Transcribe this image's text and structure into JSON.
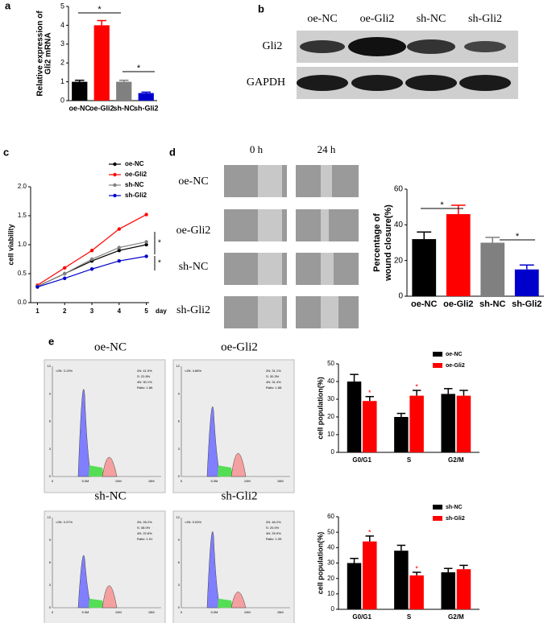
{
  "panel_labels": [
    "a",
    "b",
    "c",
    "d",
    "e"
  ],
  "blot": {
    "columns": [
      "oe-NC",
      "oe-Gli2",
      "sh-NC",
      "sh-Gli2"
    ],
    "rows": [
      "Gli2",
      "GAPDH"
    ]
  },
  "wound": {
    "columns": [
      "0 h",
      "24 h"
    ],
    "rows": [
      "oe-NC",
      "oe-Gli2",
      "sh-NC",
      "sh-Gli2"
    ]
  },
  "flow": {
    "xticks": [
      "0",
      "5.0M",
      "10M",
      "15M"
    ],
    "yticks": [
      "0",
      "3",
      "6",
      "9",
      "12"
    ],
    "panels": [
      {
        "title": "oe-NC",
        "sub": "<2N: 3.13%",
        "stats": [
          "2N: 41.9%",
          "S: 22.8%",
          "4N: 30.1%",
          "Ratio: 1.86"
        ]
      },
      {
        "title": "oe-Gli2",
        "sub": "<2N: 4.88%",
        "stats": [
          "2N: 31.1%",
          "S: 30.3%",
          "4N: 31.4%",
          "Ratio: 1.88"
        ]
      },
      {
        "title": "sh-NC",
        "sub": "<2N: 3.37%",
        "stats": [
          "2N: 28.2%",
          "S: 38.0%",
          "4N: 22.8%",
          "Ratio: 1.91"
        ]
      },
      {
        "title": "sh-Gli2",
        "sub": "<2N: 5.53%",
        "stats": [
          "2N: 46.2%",
          "S: 20.0%",
          "4N: 25.9%",
          "Ratio: 1.95"
        ]
      }
    ]
  },
  "chart_data": [
    {
      "type": "bar",
      "ylabel": [
        "Relative expression of",
        "Gli2 mRNA"
      ],
      "categories": [
        "oe-NC",
        "oe-Gli2",
        "sh-NC",
        "sh-Gli2"
      ],
      "values": [
        1.0,
        4.0,
        1.0,
        0.4
      ],
      "errors": [
        0.08,
        0.25,
        0.08,
        0.05
      ],
      "colors": [
        "#000000",
        "#ff0000",
        "#808080",
        "#0000cc"
      ],
      "ylim": [
        0,
        5
      ],
      "yticks": [
        0,
        1,
        2,
        3,
        4,
        5
      ],
      "annotations": [
        "*",
        "*"
      ]
    },
    {
      "type": "line",
      "ylabel": [
        "cell viability"
      ],
      "xlabel": "day",
      "x": [
        1,
        2,
        3,
        4,
        5
      ],
      "xlim": [
        0.75,
        5.1
      ],
      "xticks": [
        1,
        2,
        3,
        4,
        5
      ],
      "ylim": [
        0,
        2.0
      ],
      "yticks": [
        {
          "value": 0,
          "label": "0.0"
        },
        {
          "value": 0.5,
          "label": "0.5"
        },
        {
          "value": 1,
          "label": "1.0"
        },
        {
          "value": 1.5,
          "label": "1.5"
        },
        {
          "value": 2,
          "label": "2.0"
        }
      ],
      "series": [
        {
          "name": "oe-NC",
          "color": "#000000",
          "values": [
            0.28,
            0.5,
            0.72,
            0.9,
            1.0
          ]
        },
        {
          "name": "oe-Gli2",
          "color": "#ff0000",
          "values": [
            0.3,
            0.6,
            0.9,
            1.27,
            1.52
          ]
        },
        {
          "name": "sh-NC",
          "color": "#808080",
          "values": [
            0.28,
            0.5,
            0.75,
            0.95,
            1.05
          ]
        },
        {
          "name": "sh-Gli2",
          "color": "#0000cc",
          "values": [
            0.27,
            0.42,
            0.58,
            0.72,
            0.8
          ]
        }
      ],
      "annotations": [
        "*",
        "*"
      ]
    },
    {
      "type": "bar",
      "ylabel": [
        "Percentage of",
        "wound closure(%)"
      ],
      "categories": [
        "oe-NC",
        "oe-Gli2",
        "sh-NC",
        "sh-Gli2"
      ],
      "values": [
        32,
        46,
        30,
        15
      ],
      "errors": [
        4,
        5,
        3,
        2.5
      ],
      "colors": [
        "#000000",
        "#ff0000",
        "#808080",
        "#0000cc"
      ],
      "ylim": [
        0,
        60
      ],
      "yticks": [
        0,
        20,
        40,
        60
      ],
      "annotations": [
        "*",
        "*"
      ]
    },
    {
      "type": "bar",
      "ylabel": [
        "cell population(%)"
      ],
      "categories": [
        "G0/G1",
        "S",
        "G2/M"
      ],
      "series": [
        {
          "name": "oe-NC",
          "color": "#000000",
          "values": [
            40,
            20,
            33
          ],
          "errors": [
            4,
            2,
            3
          ]
        },
        {
          "name": "oe-Gli2",
          "color": "#ff0000",
          "values": [
            29,
            32,
            32
          ],
          "errors": [
            2.5,
            3,
            3
          ]
        }
      ],
      "ylim": [
        0,
        50
      ],
      "yticks": [
        0,
        10,
        20,
        30,
        40,
        50
      ],
      "annotations": [
        "*",
        "*"
      ]
    },
    {
      "type": "bar",
      "ylabel": [
        "cell population(%)"
      ],
      "categories": [
        "G0/G1",
        "S",
        "G2/M"
      ],
      "series": [
        {
          "name": "sh-NC",
          "color": "#000000",
          "values": [
            30,
            38,
            24
          ],
          "errors": [
            3,
            3.5,
            2.5
          ]
        },
        {
          "name": "sh-Gli2",
          "color": "#ff0000",
          "values": [
            44,
            22,
            26
          ],
          "errors": [
            3.5,
            2,
            2.5
          ]
        }
      ],
      "ylim": [
        0,
        60
      ],
      "yticks": [
        0,
        10,
        20,
        30,
        40,
        50,
        60
      ],
      "annotations": [
        "*",
        "*"
      ]
    }
  ]
}
